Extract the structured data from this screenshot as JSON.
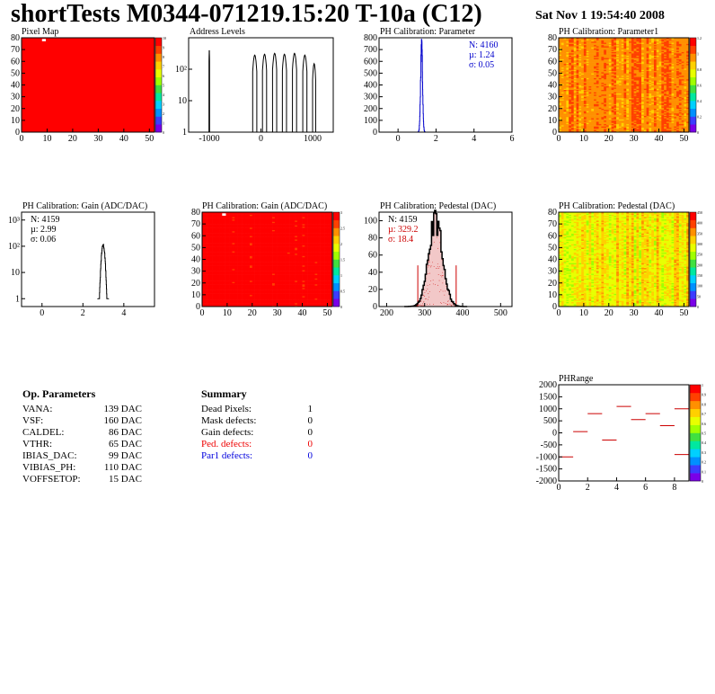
{
  "header": {
    "title": "shortTests M0344-071219.15:20 T-10a (C12)",
    "timestamp": "Sat Nov  1 19:54:40 2008"
  },
  "colors": {
    "palette": [
      "#7a00e8",
      "#3c3cff",
      "#0090ff",
      "#00d0ff",
      "#00e8a0",
      "#40e040",
      "#a0ff00",
      "#e8ff00",
      "#ffd000",
      "#ff9000",
      "#ff4000",
      "#ff0000"
    ],
    "hist_black": "#000000",
    "hist_blue": "#0000cc",
    "hist_red": "#cc0000",
    "fill_red": "#f2c8c8"
  },
  "chart_data": [
    {
      "id": "pixel-map",
      "type": "heatmap",
      "title": "Pixel Map",
      "xlim": [
        0,
        52
      ],
      "ylim": [
        0,
        80
      ],
      "xticks": [
        0,
        10,
        20,
        30,
        40,
        50
      ],
      "yticks": [
        0,
        10,
        20,
        30,
        40,
        50,
        60,
        70,
        80
      ],
      "zlim": [
        0,
        10
      ],
      "zticks": [
        "0",
        "1",
        "2",
        "3",
        "4",
        "5",
        "6",
        "7",
        "8",
        "9",
        "10"
      ],
      "mode": "uniform",
      "z_value": 10,
      "special_cells": [
        {
          "col": 8,
          "row": 78,
          "color": "#ffffff"
        }
      ]
    },
    {
      "id": "address-levels",
      "type": "bar",
      "title": "Address Levels",
      "xlim": [
        -1400,
        1400
      ],
      "ylim": [
        0,
        3
      ],
      "xticks": [
        -1000,
        0,
        1000
      ],
      "xtick_labels": [
        "-1000",
        "0",
        "1000"
      ],
      "yticks": [
        0,
        1,
        2
      ],
      "ytick_labels": [
        "1",
        "10",
        "10²"
      ],
      "y_log": true,
      "peaks": [
        {
          "x": -1000,
          "value": 400,
          "width": 12
        },
        {
          "x": -120,
          "value": 280,
          "width": 80
        },
        {
          "x": 70,
          "value": 300,
          "width": 80
        },
        {
          "x": 265,
          "value": 320,
          "width": 80
        },
        {
          "x": 455,
          "value": 300,
          "width": 80
        },
        {
          "x": 650,
          "value": 320,
          "width": 80
        },
        {
          "x": 850,
          "value": 280,
          "width": 80
        },
        {
          "x": 1030,
          "value": 150,
          "width": 60
        }
      ]
    },
    {
      "id": "ph-cal-parameter",
      "type": "bar",
      "title": "PH Calibration: Parameter",
      "xlim": [
        -1,
        6
      ],
      "ylim": [
        0,
        800
      ],
      "xticks": [
        0,
        2,
        4,
        6
      ],
      "yticks": [
        0,
        100,
        200,
        300,
        400,
        500,
        600,
        700,
        800
      ],
      "gauss": {
        "mu": 1.24,
        "sigma": 0.05,
        "peak": 760
      },
      "series_color": "#0000cc",
      "stats": [
        {
          "text": "N: 4160",
          "color": "#0000cc"
        },
        {
          "text": "µ: 1.24",
          "color": "#0000cc"
        },
        {
          "text": "σ: 0.05",
          "color": "#0000cc"
        }
      ]
    },
    {
      "id": "ph-cal-parameter1",
      "type": "heatmap",
      "title": "PH Calibration: Parameter1",
      "xlim": [
        0,
        52
      ],
      "ylim": [
        0,
        80
      ],
      "xticks": [
        0,
        10,
        20,
        30,
        40,
        50
      ],
      "yticks": [
        0,
        10,
        20,
        30,
        40,
        50,
        60,
        70,
        80
      ],
      "zlim": [
        0,
        1.2
      ],
      "zticks": [
        "0",
        "0.2",
        "0.4",
        "0.6",
        "0.8",
        "1",
        "1.2"
      ],
      "mode": "noisy",
      "z_mean": 0.97,
      "z_spread": 0.09,
      "seed": 11
    },
    {
      "id": "ph-cal-gain-hist",
      "type": "bar",
      "title": "PH Calibration: Gain (ADC/DAC)",
      "xlim": [
        -1,
        5.5
      ],
      "ylim": [
        -0.3,
        3.3
      ],
      "xticks": [
        0,
        2,
        4
      ],
      "yticks": [
        0,
        1,
        2,
        3
      ],
      "ytick_labels": [
        "1",
        "10",
        "10²",
        "10³"
      ],
      "y_log": true,
      "gauss": {
        "mu": 2.99,
        "sigma": 0.06,
        "peak": 110,
        "tail_from": 2.55
      },
      "series_color": "#000000",
      "stats": [
        {
          "text": "N: 4159",
          "color": "#000000"
        },
        {
          "text": "µ: 2.99",
          "color": "#000000"
        },
        {
          "text": "σ: 0.06",
          "color": "#000000"
        }
      ]
    },
    {
      "id": "ph-cal-gain-map",
      "type": "heatmap",
      "title": "PH Calibration: Gain (ADC/DAC)",
      "xlim": [
        0,
        52
      ],
      "ylim": [
        0,
        80
      ],
      "xticks": [
        0,
        10,
        20,
        30,
        40,
        50
      ],
      "yticks": [
        0,
        10,
        20,
        30,
        40,
        50,
        60,
        70,
        80
      ],
      "zlim": [
        0,
        3
      ],
      "zticks": [
        "0",
        "0.5",
        "1",
        "1.5",
        "2",
        "2.5",
        "3"
      ],
      "mode": "noisy",
      "z_mean": 2.92,
      "z_spread": 0.15,
      "seed": 23,
      "special_cells": [
        {
          "col": 8,
          "row": 78,
          "color": "#ffffff"
        }
      ]
    },
    {
      "id": "ph-cal-pedestal-hist",
      "type": "bar",
      "title": "PH Calibration: Pedestal (DAC)",
      "xlim": [
        180,
        530
      ],
      "ylim": [
        0,
        110
      ],
      "xticks": [
        200,
        300,
        400,
        500
      ],
      "yticks": [
        0,
        20,
        40,
        60,
        80,
        100
      ],
      "gauss": {
        "mu": 329.2,
        "sigma": 18.4,
        "peak": 100
      },
      "cut_lines": [
        {
          "x": 282,
          "value": 48
        },
        {
          "x": 383,
          "value": 48
        }
      ],
      "series_color": "#000000",
      "stats": [
        {
          "text": "N: 4159",
          "color": "#000000"
        },
        {
          "text": "µ: 329.2",
          "color": "#cc0000"
        },
        {
          "text": "σ: 18.4",
          "color": "#cc0000"
        }
      ]
    },
    {
      "id": "ph-cal-pedestal-map",
      "type": "heatmap",
      "title": "PH Calibration: Pedestal (DAC)",
      "xlim": [
        0,
        52
      ],
      "ylim": [
        0,
        80
      ],
      "xticks": [
        0,
        10,
        20,
        30,
        40,
        50
      ],
      "yticks": [
        0,
        10,
        20,
        30,
        40,
        50,
        60,
        70,
        80
      ],
      "zlim": [
        0,
        450
      ],
      "zticks": [
        "0",
        "50",
        "100",
        "150",
        "200",
        "250",
        "300",
        "350",
        "400",
        "450"
      ],
      "mode": "noisy",
      "z_mean": 300,
      "z_spread": 45,
      "seed": 37
    },
    {
      "id": "ph-range",
      "type": "scatter",
      "title": "PHRange",
      "xlim": [
        0,
        9
      ],
      "ylim": [
        -2000,
        2000
      ],
      "xticks": [
        0,
        2,
        4,
        6,
        8
      ],
      "yticks": [
        -2000,
        -1500,
        -1000,
        -500,
        0,
        500,
        1000,
        1500,
        2000
      ],
      "zlim": [
        0,
        1
      ],
      "zticks": [
        "0",
        "0.1",
        "0.2",
        "0.3",
        "0.4",
        "0.5",
        "0.6",
        "0.7",
        "0.8",
        "0.9",
        "1"
      ],
      "segments": [
        {
          "x": 0,
          "y": -1000
        },
        {
          "x": 1,
          "y": 50
        },
        {
          "x": 2,
          "y": 800
        },
        {
          "x": 3,
          "y": -300
        },
        {
          "x": 4,
          "y": 1100
        },
        {
          "x": 5,
          "y": 550
        },
        {
          "x": 6,
          "y": 800
        },
        {
          "x": 7,
          "y": 300
        },
        {
          "x": 8,
          "y": 1000
        },
        {
          "x": 8,
          "y": -900
        }
      ]
    }
  ],
  "op_parameters": {
    "title": "Op. Parameters",
    "rows": [
      {
        "name": "VANA:",
        "value": "139 DAC"
      },
      {
        "name": "VSF:",
        "value": "160 DAC"
      },
      {
        "name": "CALDEL:",
        "value": "86 DAC"
      },
      {
        "name": "VTHR:",
        "value": "65 DAC"
      },
      {
        "name": "IBIAS_DAC:",
        "value": "99 DAC"
      },
      {
        "name": "VIBIAS_PH:",
        "value": "110 DAC"
      },
      {
        "name": "VOFFSETOP:",
        "value": "15 DAC"
      }
    ]
  },
  "summary": {
    "title": "Summary",
    "rows": [
      {
        "name": "Dead Pixels:",
        "value": "1",
        "color": "#000000"
      },
      {
        "name": "Mask defects:",
        "value": "0",
        "color": "#000000"
      },
      {
        "name": "Gain defects:",
        "value": "0",
        "color": "#000000"
      },
      {
        "name": "Ped. defects:",
        "value": "0",
        "color": "#ee0000"
      },
      {
        "name": "Par1 defects:",
        "value": "0",
        "color": "#0000dd"
      }
    ]
  }
}
